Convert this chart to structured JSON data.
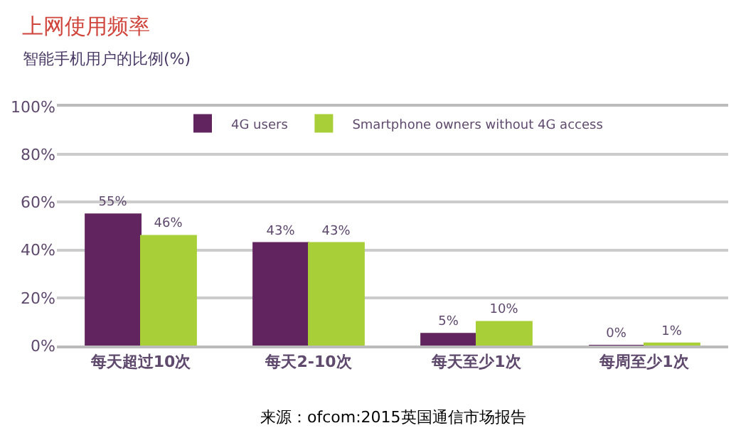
{
  "chart_data": {
    "type": "bar",
    "title": "上网使用频率",
    "subtitle": "智能手机用户的比例(%)",
    "categories": [
      "每天超过10次",
      "每天2-10次",
      "每天至少1次",
      "每周至少1次"
    ],
    "series": [
      {
        "name": "4G users",
        "color": "#62245f",
        "values": [
          55,
          43,
          5,
          0
        ],
        "value_labels": [
          "55%",
          "43%",
          "5%",
          "0%"
        ]
      },
      {
        "name": "Smartphone owners without 4G access",
        "color": "#a8cf38",
        "values": [
          46,
          43,
          10,
          1
        ],
        "value_labels": [
          "46%",
          "43%",
          "10%",
          "1%"
        ]
      }
    ],
    "ylim": [
      0,
      100
    ],
    "yticks": [
      {
        "value": 0,
        "label": "0%"
      },
      {
        "value": 20,
        "label": "20%"
      },
      {
        "value": 40,
        "label": "40%"
      },
      {
        "value": 60,
        "label": "60%"
      },
      {
        "value": 80,
        "label": "80%"
      },
      {
        "value": 100,
        "label": "100%"
      }
    ],
    "grid": "y",
    "legend": "top",
    "annotations": [
      "来源：ofcom:2015英国通信市场报告"
    ]
  }
}
